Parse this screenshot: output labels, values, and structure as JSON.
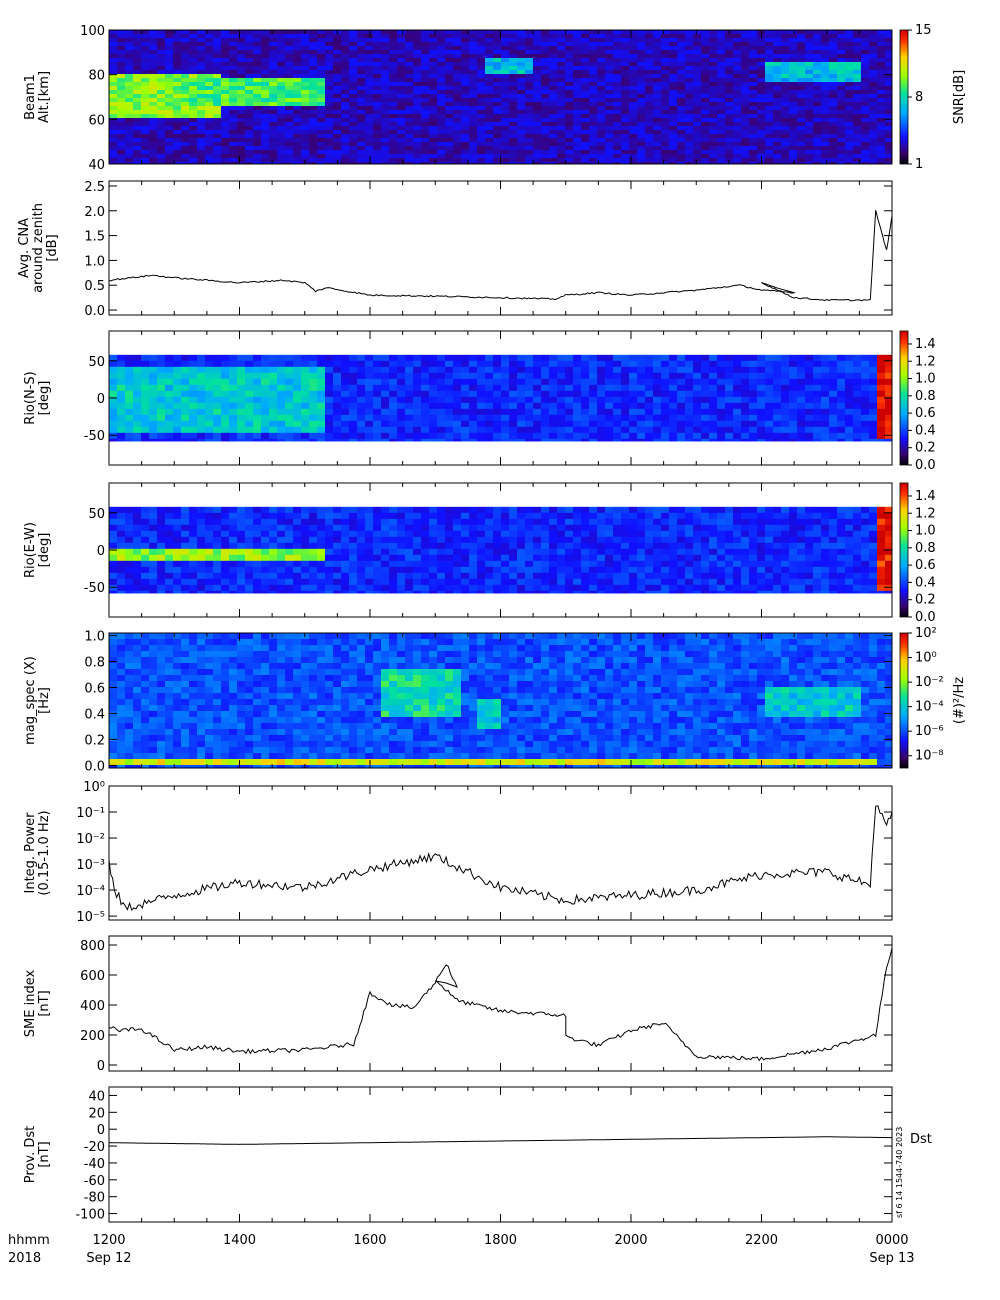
{
  "chart_data": [
    {
      "type": "heatmap",
      "id": "beam1",
      "ylabel_lines": [
        "Beam1",
        "Alt.[km]"
      ],
      "ylim": [
        40,
        100
      ],
      "yticks": [
        "40",
        "60",
        "80",
        "100"
      ],
      "colorbar": {
        "label": "SNR[dB]",
        "ticks": [
          "1",
          "8",
          "15"
        ],
        "range": [
          1,
          15
        ]
      },
      "patches": [
        {
          "x": [
            1200,
            1345
          ],
          "y": [
            61,
            80
          ],
          "value": 10
        },
        {
          "x": [
            1305,
            1520
          ],
          "y": [
            66,
            78
          ],
          "value": 9
        },
        {
          "x": [
            2200,
            2330
          ],
          "y": [
            76,
            86
          ],
          "value": 7
        },
        {
          "x": [
            1745,
            1830
          ],
          "y": [
            80,
            88
          ],
          "value": 7
        }
      ],
      "background_level": 3
    },
    {
      "type": "line",
      "id": "cna",
      "ylabel_lines": [
        "Avg. CNA",
        "around zenith",
        "[dB]"
      ],
      "ylim": [
        -0.1,
        2.6
      ],
      "yticks": [
        "0.0",
        "0.5",
        "1.0",
        "1.5",
        "2.0",
        "2.5"
      ],
      "series": [
        {
          "x": [
            1200,
            1240,
            1300,
            1330,
            1400,
            1440,
            1500,
            1510,
            1520,
            1600,
            1700,
            1800,
            1850,
            1900,
            1930,
            2000,
            2100,
            2140,
            2160,
            2190,
            2200,
            2230,
            2300,
            2340,
            2345,
            2355,
            2400
          ],
          "y": [
            0.6,
            0.7,
            0.65,
            0.6,
            0.55,
            0.6,
            0.55,
            0.38,
            0.45,
            0.3,
            0.28,
            0.25,
            0.22,
            0.3,
            0.35,
            0.3,
            0.4,
            0.5,
            0.4,
            0.35,
            0.55,
            0.25,
            0.2,
            0.2,
            2.0,
            1.2,
            1.9
          ]
        }
      ]
    },
    {
      "type": "heatmap",
      "id": "riometer-ns",
      "ylabel_lines": [
        "Rio(N-S)",
        "[deg]"
      ],
      "ylim": [
        -90,
        90
      ],
      "yticks": [
        "-50",
        "0",
        "50"
      ],
      "data_extent": [
        -58,
        58
      ],
      "colorbar": {
        "ticks": [
          "0.0",
          "0.2",
          "0.4",
          "0.6",
          "0.8",
          "1.0",
          "1.2",
          "1.4"
        ],
        "range": [
          0,
          1.55
        ]
      },
      "patches": [
        {
          "x": [
            1200,
            1515
          ],
          "y": [
            -45,
            45
          ],
          "value": 0.7
        },
        {
          "x": [
            2345,
            2400
          ],
          "y": [
            -58,
            58
          ],
          "value": 1.5
        }
      ],
      "background_level": 0.35
    },
    {
      "type": "heatmap",
      "id": "riometer-ew",
      "ylabel_lines": [
        "Rio(E-W)",
        "[deg]"
      ],
      "ylim": [
        -90,
        90
      ],
      "yticks": [
        "-50",
        "0",
        "50"
      ],
      "data_extent": [
        -58,
        58
      ],
      "colorbar": {
        "ticks": [
          "0.0",
          "0.2",
          "0.4",
          "0.6",
          "0.8",
          "1.0",
          "1.2",
          "1.4"
        ],
        "range": [
          0,
          1.55
        ]
      },
      "patches": [
        {
          "x": [
            1200,
            1515
          ],
          "y": [
            -15,
            0
          ],
          "value": 1.0
        },
        {
          "x": [
            2345,
            2400
          ],
          "y": [
            -58,
            58
          ],
          "value": 1.5
        }
      ],
      "background_level": 0.35
    },
    {
      "type": "heatmap",
      "id": "mag-spec",
      "ylabel_lines": [
        "mag_spec (X)",
        "[Hz]"
      ],
      "ylim": [
        -0.02,
        1.02
      ],
      "yticks": [
        "0.0",
        "0.2",
        "0.4",
        "0.6",
        "0.8",
        "1.0"
      ],
      "colorbar": {
        "label": "(#)²/Hz",
        "ticks": [
          "10⁻⁸",
          "10⁻⁶",
          "10⁻⁴",
          "10⁻²",
          "10⁰",
          "10²"
        ],
        "log_range": [
          -9,
          2
        ]
      },
      "patches": [
        {
          "x": [
            1570,
            1720
          ],
          "y": [
            0.35,
            0.75
          ],
          "value": -3.5
        },
        {
          "x": [
            1740,
            1800
          ],
          "y": [
            0.3,
            0.5
          ],
          "value": -4
        },
        {
          "x": [
            2200,
            2330
          ],
          "y": [
            0.35,
            0.6
          ],
          "value": -4
        },
        {
          "x": [
            1200,
            2345
          ],
          "y": [
            0.0,
            0.04
          ],
          "value": -1
        }
      ],
      "background_level": -6
    },
    {
      "type": "line",
      "id": "integ-power",
      "ylabel_lines": [
        "Integ. Power",
        "(0.15-1.0 Hz)"
      ],
      "log_y": true,
      "ylim": [
        -5.15,
        0
      ],
      "yticks": [
        "10⁻⁵",
        "10⁻⁴",
        "10⁻³",
        "10⁻²",
        "10⁻¹",
        "10⁰"
      ],
      "series": [
        {
          "x": [
            1200,
            1205,
            1215,
            1300,
            1400,
            1500,
            1600,
            1700,
            1800,
            1900,
            2000,
            2100,
            2200,
            2300,
            2340,
            2345,
            2355,
            2400
          ],
          "y": [
            -3.0,
            -4.0,
            -4.7,
            -4.2,
            -3.7,
            -3.9,
            -3.2,
            -2.7,
            -3.9,
            -4.4,
            -4.2,
            -4.0,
            -3.4,
            -3.3,
            -3.8,
            -0.6,
            -1.6,
            -1.0
          ]
        }
      ]
    },
    {
      "type": "line",
      "id": "sme-index",
      "ylabel_lines": [
        "SME index",
        "[nT]"
      ],
      "ylim": [
        -40,
        860
      ],
      "yticks": [
        "0",
        "200",
        "400",
        "600",
        "800"
      ],
      "series": [
        {
          "x": [
            1200,
            1210,
            1230,
            1300,
            1330,
            1400,
            1500,
            1545,
            1600,
            1620,
            1640,
            1660,
            1670,
            1680,
            1700,
            1720,
            1800,
            1860,
            1900,
            1930,
            2000,
            2030,
            2100,
            2200,
            2300,
            2330,
            2345,
            2355,
            2400
          ],
          "y": [
            250,
            230,
            240,
            100,
            120,
            90,
            100,
            140,
            480,
            400,
            380,
            550,
            680,
            520,
            570,
            430,
            360,
            330,
            190,
            130,
            230,
            280,
            60,
            40,
            110,
            170,
            200,
            650,
            780
          ]
        }
      ]
    },
    {
      "type": "line",
      "id": "prov-dst",
      "ylabel_lines": [
        "Prov. Dst",
        "[nT]"
      ],
      "ylim": [
        -110,
        50
      ],
      "yticks": [
        "-100",
        "-80",
        "-60",
        "-40",
        "-20",
        "0",
        "20",
        "40"
      ],
      "series": [
        {
          "name": "Dst",
          "x": [
            1200,
            1300,
            1400,
            1500,
            1600,
            1700,
            1800,
            1900,
            2000,
            2100,
            2200,
            2300,
            2400
          ],
          "y": [
            -16,
            -17,
            -18,
            -17,
            -16,
            -15,
            -14,
            -13,
            -12,
            -11,
            -10,
            -9,
            -10
          ]
        }
      ],
      "stamp": "sf 6 14 1544-740 2023"
    }
  ],
  "x_axis": {
    "range": [
      1200,
      2400
    ],
    "ticks": [
      "1200",
      "1400",
      "1600",
      "1800",
      "2000",
      "2200",
      "0000"
    ],
    "date_labels": [
      {
        "at": "1200",
        "text": "Sep 12"
      },
      {
        "at": "0000",
        "text": "Sep 13"
      }
    ],
    "left_caption": [
      "hhmm",
      "2018"
    ]
  }
}
